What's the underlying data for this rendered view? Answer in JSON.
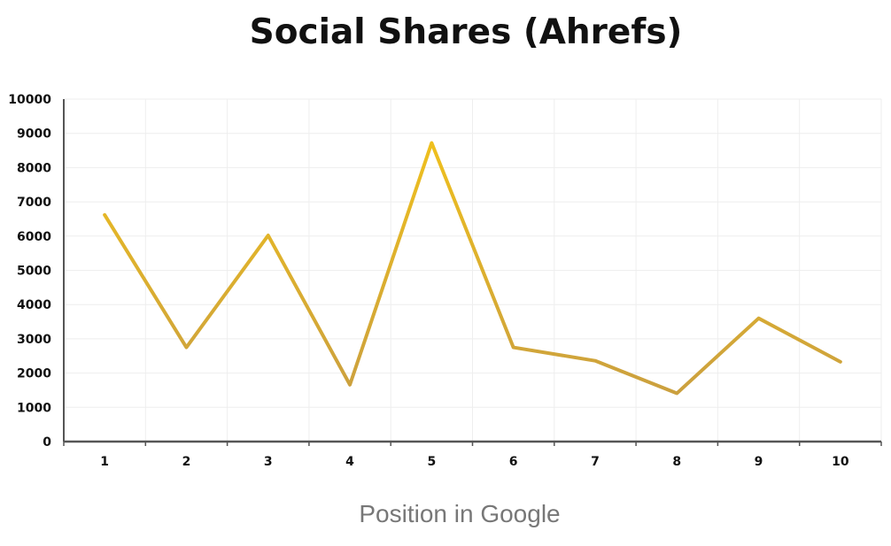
{
  "chart_data": {
    "type": "line",
    "title": "Social Shares (Ahrefs)",
    "xlabel": "Position in Google",
    "ylabel": "",
    "categories": [
      "1",
      "2",
      "3",
      "4",
      "5",
      "6",
      "7",
      "8",
      "9",
      "10"
    ],
    "values": [
      6620,
      2750,
      6020,
      1660,
      8720,
      2750,
      2360,
      1410,
      3600,
      2330
    ],
    "ylim": [
      0,
      10000
    ],
    "yticks": [
      "0",
      "1000",
      "2000",
      "3000",
      "4000",
      "5000",
      "6000",
      "7000",
      "8000",
      "9000",
      "10000"
    ],
    "grid": true,
    "legend": "none",
    "colors": {
      "line_light": "#f5c518",
      "line_dark": "#c49a45",
      "axis": "#555555",
      "grid": "#eeeeee"
    }
  }
}
